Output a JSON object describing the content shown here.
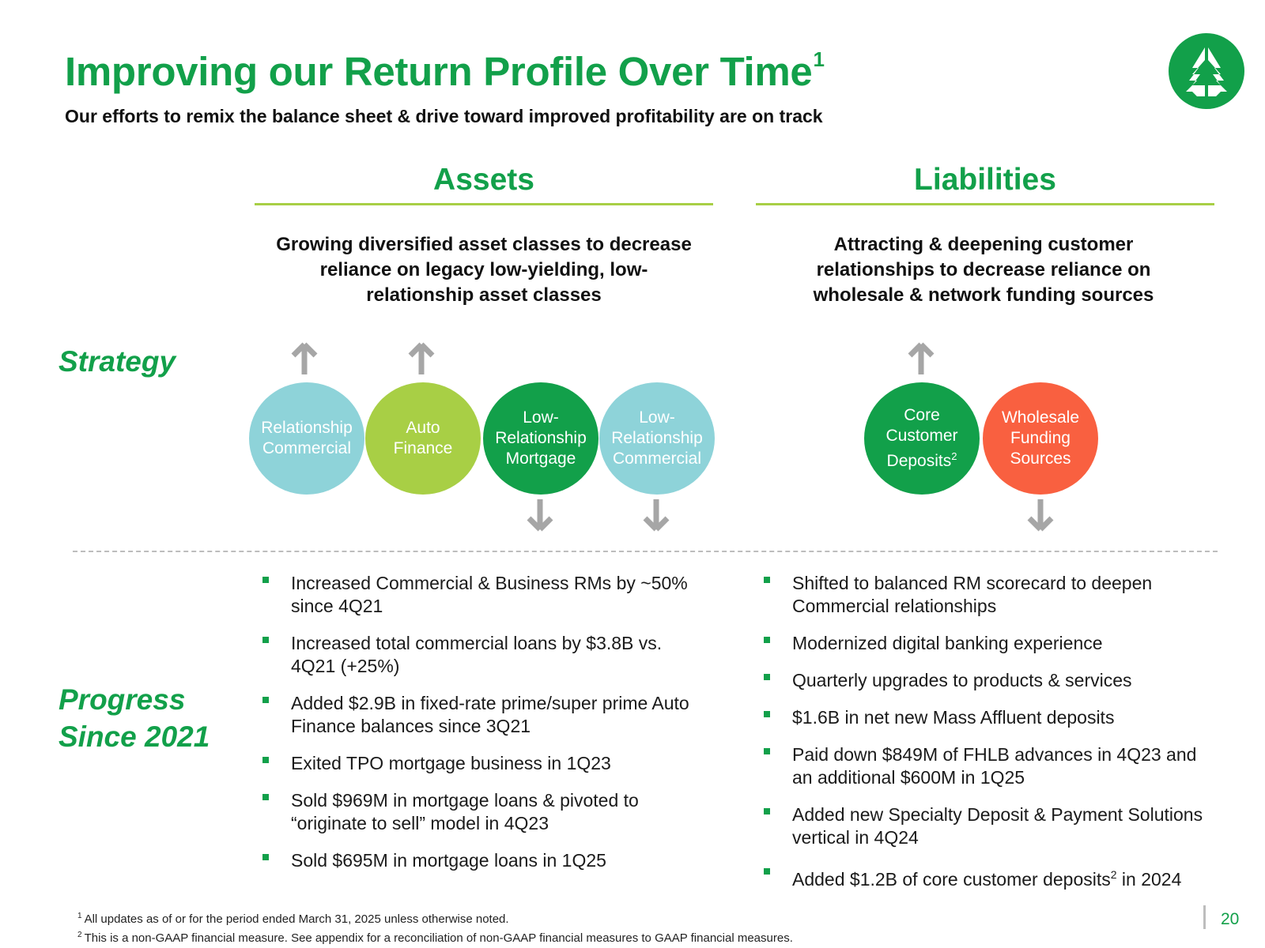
{
  "header": {
    "title": "Improving our Return Profile Over Time",
    "title_footnote": "1",
    "subtitle": "Our efforts to remix the balance sheet & drive toward improved profitability are on track",
    "logo_icon": "tree-logo-icon"
  },
  "assets": {
    "heading": "Assets",
    "description": "Growing diversified asset classes to decrease reliance on legacy low-yielding, low-relationship asset classes",
    "bubbles": [
      {
        "label": "Relationship Commercial",
        "direction": "up",
        "color": "#8ed3d9"
      },
      {
        "label": "Auto Finance",
        "direction": "up",
        "color": "#a8cf45"
      },
      {
        "label": "Low-Relationship Mortgage",
        "direction": "down",
        "color": "#12a04a"
      },
      {
        "label": "Low-Relationship Commercial",
        "direction": "down",
        "color": "#8ed3d9"
      }
    ],
    "progress": [
      "Increased Commercial & Business RMs by ~50% since 4Q21",
      "Increased total commercial loans by $3.8B vs. 4Q21 (+25%)",
      "Added $2.9B in fixed-rate prime/super prime Auto Finance balances since 3Q21",
      "Exited TPO mortgage business in 1Q23",
      "Sold $969M in mortgage loans & pivoted to “originate to sell” model in 4Q23",
      "Sold $695M in mortgage loans in 1Q25"
    ]
  },
  "liabilities": {
    "heading": "Liabilities",
    "description": "Attracting & deepening customer relationships to decrease reliance on wholesale & network funding sources",
    "bubbles": [
      {
        "label": "Core Customer Deposits",
        "footnote": "2",
        "direction": "up",
        "color": "#12a04a"
      },
      {
        "label": "Wholesale Funding Sources",
        "direction": "down",
        "color": "#f96040"
      }
    ],
    "progress": [
      "Shifted to balanced RM scorecard to deepen Commercial relationships",
      "Modernized digital banking experience",
      "Quarterly upgrades to products & services",
      "$1.6B in net new Mass Affluent deposits",
      "Paid down $849M of FHLB advances in 4Q23 and an additional $600M in 1Q25",
      "Added new Specialty Deposit & Payment Solutions vertical in 4Q24",
      {
        "before": "Added $1.2B of core customer deposits",
        "footnote": "2",
        "after": " in 2024"
      }
    ]
  },
  "rows": {
    "strategy": "Strategy",
    "progress_line1": "Progress",
    "progress_line2": "Since 2021"
  },
  "footnotes": [
    {
      "mark": "1",
      "text": "All updates as of or for the period ended March 31, 2025 unless otherwise noted."
    },
    {
      "mark": "2",
      "text": "This is a non-GAAP financial measure. See appendix for a reconciliation of non-GAAP financial measures to GAAP financial measures."
    }
  ],
  "page_number": "20",
  "colors": {
    "brand_green": "#12a04a",
    "lime": "#a8cf45",
    "teal": "#8ed3d9",
    "orange": "#f96040",
    "arrow_gray": "#a6a6a6"
  }
}
